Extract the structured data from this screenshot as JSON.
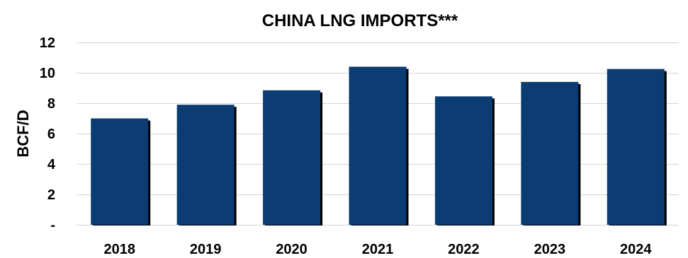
{
  "chart_data": {
    "type": "bar",
    "title": "CHINA LNG IMPORTS***",
    "xlabel": "",
    "ylabel": "BCF/D",
    "categories": [
      "2018",
      "2019",
      "2020",
      "2021",
      "2022",
      "2023",
      "2024"
    ],
    "values": [
      7.0,
      7.9,
      8.85,
      10.4,
      8.45,
      9.4,
      10.25
    ],
    "ylim": [
      0,
      12
    ],
    "yticks": [
      {
        "value": 0,
        "label": "-"
      },
      {
        "value": 2,
        "label": "2"
      },
      {
        "value": 4,
        "label": "4"
      },
      {
        "value": 6,
        "label": "6"
      },
      {
        "value": 8,
        "label": "8"
      },
      {
        "value": 10,
        "label": "10"
      },
      {
        "value": 12,
        "label": "12"
      }
    ],
    "grid": true,
    "legend": "none",
    "colors": {
      "bar": "#0b3d73",
      "bar_shadow": "#000000",
      "grid": "#d4d4d4",
      "text": "#000000"
    }
  }
}
